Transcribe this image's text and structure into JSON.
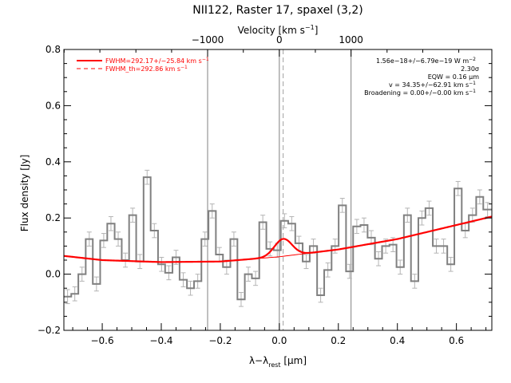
{
  "chart_data": {
    "type": "line",
    "title": "NII122, Raster 17, spaxel (3,2)",
    "xlabel": "λ−λ",
    "xlabel_sub": "rest",
    "xlabel_unit": " [μm]",
    "ylabel": "Flux density [Jy]",
    "top_axis_label": "Velocity [km s",
    "top_axis_label_sup": "−1",
    "top_axis_label_end": "]",
    "xlim": [
      -0.73,
      0.72
    ],
    "ylim": [
      -0.2,
      0.8
    ],
    "x_ticks": [
      -0.6,
      -0.4,
      -0.2,
      0.0,
      0.2,
      0.4,
      0.6
    ],
    "x_tick_labels": [
      "−0.6",
      "−0.4",
      "−0.2",
      "0.0",
      "0.2",
      "0.4",
      "0.6"
    ],
    "y_ticks": [
      -0.2,
      0.0,
      0.2,
      0.4,
      0.6,
      0.8
    ],
    "y_tick_labels": [
      "−0.2",
      "0.0",
      "0.2",
      "0.4",
      "0.6",
      "0.8"
    ],
    "top_ticks_x": [
      -0.243,
      0.0,
      0.243
    ],
    "top_tick_labels": [
      "−1000",
      "0",
      "1000"
    ],
    "vertical_lines": [
      -0.243,
      0.0,
      0.243
    ],
    "dashed_vertical_line": 0.013,
    "spectrum": {
      "bin_edges": [
        -0.73,
        -0.705,
        -0.681,
        -0.656,
        -0.632,
        -0.607,
        -0.583,
        -0.558,
        -0.534,
        -0.509,
        -0.485,
        -0.46,
        -0.436,
        -0.411,
        -0.387,
        -0.362,
        -0.338,
        -0.313,
        -0.289,
        -0.264,
        -0.24,
        -0.215,
        -0.191,
        -0.166,
        -0.142,
        -0.117,
        -0.093,
        -0.068,
        -0.044,
        -0.019,
        0.005,
        0.03,
        0.054,
        0.079,
        0.103,
        0.128,
        0.152,
        0.177,
        0.201,
        0.226,
        0.25,
        0.275,
        0.299,
        0.324,
        0.348,
        0.373,
        0.397,
        0.422,
        0.446,
        0.471,
        0.495,
        0.52,
        0.544,
        0.569,
        0.593,
        0.618,
        0.642,
        0.667,
        0.691,
        0.72
      ],
      "flux": [
        -0.08,
        -0.07,
        0.0,
        0.125,
        -0.035,
        0.12,
        0.18,
        0.125,
        0.05,
        0.21,
        0.045,
        0.345,
        0.155,
        0.035,
        0.005,
        0.06,
        -0.02,
        -0.05,
        -0.025,
        0.125,
        0.225,
        0.07,
        0.025,
        0.125,
        -0.09,
        0.0,
        -0.015,
        0.185,
        0.09,
        0.085,
        0.19,
        0.18,
        0.11,
        0.045,
        0.1,
        -0.075,
        0.015,
        0.1,
        0.245,
        0.01,
        0.17,
        0.175,
        0.13,
        0.055,
        0.1,
        0.105,
        0.025,
        0.21,
        -0.025,
        0.2,
        0.235,
        0.1,
        0.1,
        0.035,
        0.305,
        0.155,
        0.21,
        0.275,
        0.23
      ],
      "error": 0.025
    },
    "series": [
      {
        "name": "FWHM=292.17+/−25.84 km s",
        "name_sup": "−1",
        "style": "solid",
        "color": "#ff0000"
      },
      {
        "name": "FWHM_th=292.86 km s",
        "name_sup": "−1",
        "style": "dashed",
        "color": "#ff0000"
      }
    ],
    "continuum_points": {
      "x": [
        -0.73,
        -0.6,
        -0.4,
        -0.2,
        0.0,
        0.2,
        0.4,
        0.6,
        0.72
      ],
      "y": [
        0.065,
        0.05,
        0.043,
        0.045,
        0.062,
        0.088,
        0.125,
        0.175,
        0.205
      ]
    },
    "gaussian": {
      "center": 0.013,
      "amplitude": 0.062,
      "fwhm": 0.07
    },
    "annotations": [
      "1.56e−18+/−6.79e−19 W m",
      "2.30σ",
      "EQW = 0.16 μm",
      "v = 34.35+/−62.91 km s",
      "Broadening = 0.00+/−0.00 km s"
    ],
    "annotation_sups": [
      "−2",
      "",
      "",
      "−1",
      "−1"
    ],
    "colors": {
      "spectrum": "#808080",
      "error_bars": "#b4b4b4",
      "fit": "#ff0000",
      "vertical_lines": "#808080",
      "axes": "#000000"
    },
    "legend_position": "top-left",
    "annotation_position": "top-right",
    "grid": false
  }
}
